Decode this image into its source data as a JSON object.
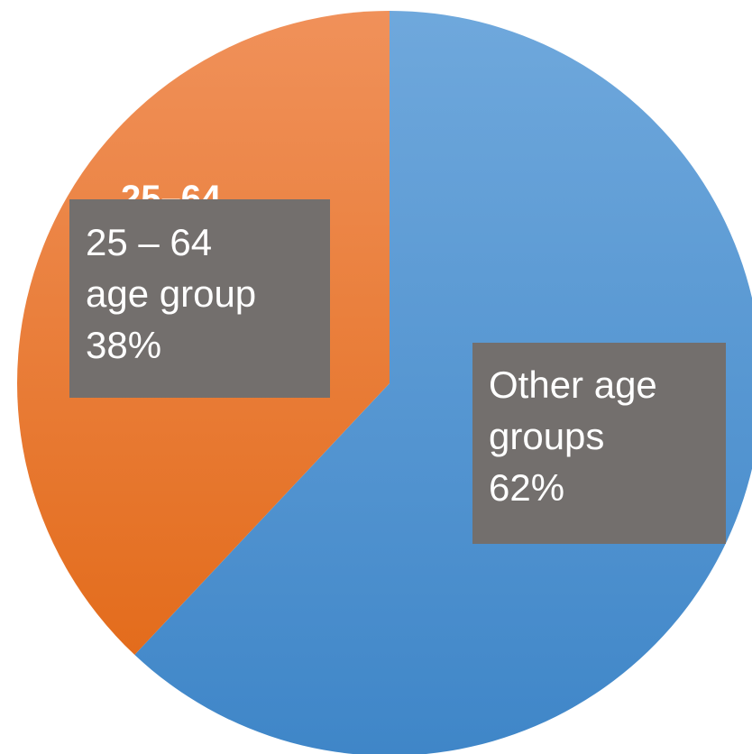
{
  "chart_data": {
    "type": "pie",
    "title": "",
    "slices": [
      {
        "name": "Other age groups",
        "value": 62,
        "color": "#5b9bd5",
        "label_lines": [
          "Other age",
          "groups",
          "62%"
        ]
      },
      {
        "name": "25 – 64 age group",
        "value": 38,
        "color": "#ed7d31",
        "label_lines": [
          "25 – 64",
          "age group",
          "38%"
        ]
      }
    ],
    "obscured_label": "25–64",
    "legend": "none",
    "start_angle_deg": 0,
    "direction": "clockwise"
  }
}
